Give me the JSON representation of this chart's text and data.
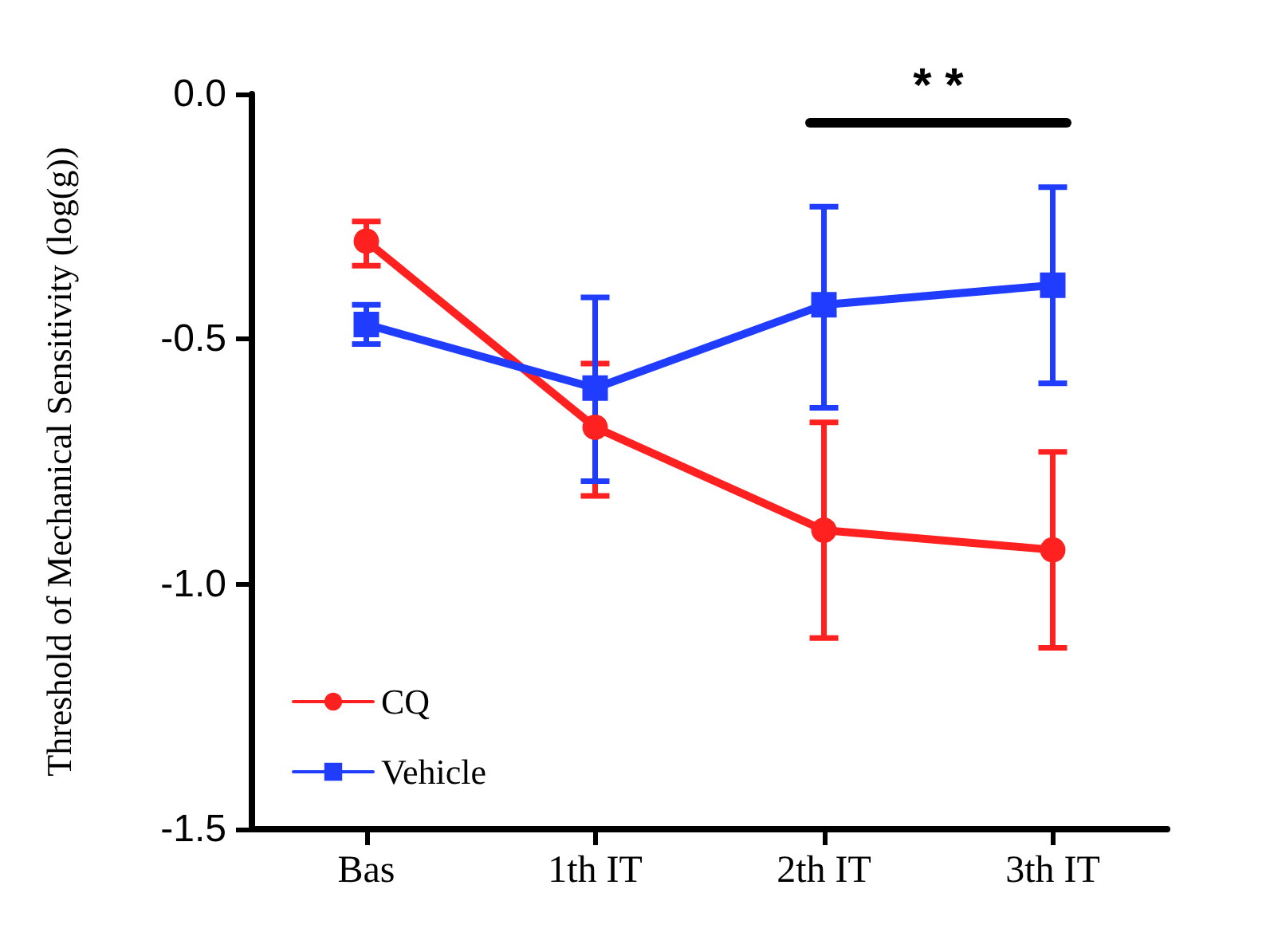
{
  "chart_data": {
    "type": "line",
    "ylabel": "Threshold of Mechanical Sensitivity (log(g))",
    "categories": [
      "Bas",
      "1th IT",
      "2th IT",
      "3th IT"
    ],
    "ylim": [
      -1.5,
      0
    ],
    "yticks": [
      {
        "value": -1.5,
        "label": "-1.5"
      },
      {
        "value": -1,
        "label": "-1.0"
      },
      {
        "value": -0.5,
        "label": "-0.5"
      },
      {
        "value": 0,
        "label": "0.0"
      }
    ],
    "grid": false,
    "legend": "bottom left",
    "line_style": "solid",
    "annotations": [
      "* *"
    ],
    "series": [
      {
        "name": "CQ",
        "color": "#ff2020",
        "marker": "circle",
        "values": [
          -0.3,
          -0.68,
          -0.89,
          -0.93
        ],
        "errors": [
          [
            -0.35,
            -0.26
          ],
          [
            -0.82,
            -0.55
          ],
          [
            -1.11,
            -0.67
          ],
          [
            -1.13,
            -0.73
          ]
        ]
      },
      {
        "name": "Vehicle",
        "color": "#1f3cff",
        "marker": "square",
        "values": [
          -0.47,
          -0.6,
          -0.43,
          -0.39
        ],
        "errors": [
          [
            -0.51,
            -0.43
          ],
          [
            -0.79,
            -0.415
          ],
          [
            -0.64,
            -0.23
          ],
          [
            -0.59,
            -0.19
          ]
        ]
      }
    ]
  }
}
